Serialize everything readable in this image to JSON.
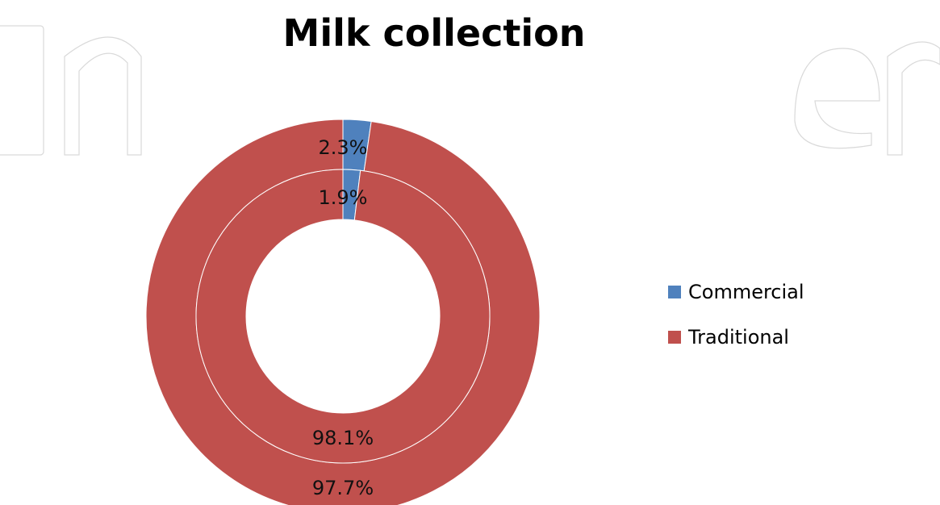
{
  "chart_data": {
    "type": "pie",
    "subtype": "donut",
    "title": "Milk collection",
    "categories": [
      "Commercial",
      "Traditional"
    ],
    "colors": {
      "Commercial": "#4f81bd",
      "Traditional": "#c0504d"
    },
    "series": [
      {
        "ring": "outer",
        "values": [
          2.3,
          97.7
        ],
        "labels": [
          "2.3%",
          "97.7%"
        ]
      },
      {
        "ring": "inner",
        "values": [
          1.9,
          98.1
        ],
        "labels": [
          "1.9%",
          "98.1%"
        ]
      }
    ],
    "legend": {
      "position": "right",
      "entries": [
        "Commercial",
        "Traditional"
      ]
    }
  }
}
